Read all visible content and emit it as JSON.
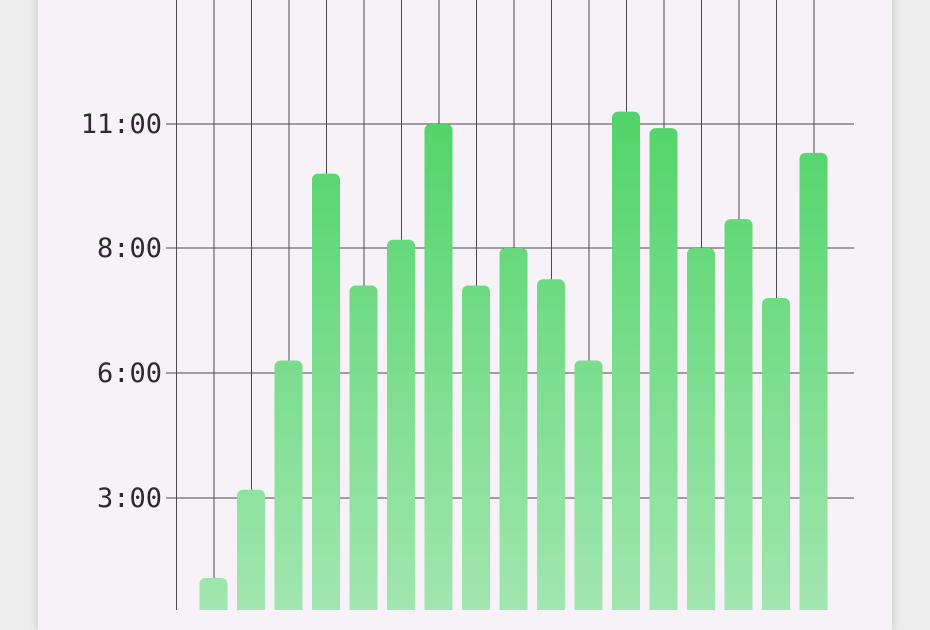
{
  "chart_data": {
    "type": "bar",
    "title": "",
    "xlabel": "",
    "ylabel": "",
    "y_unit": "h:mm",
    "yticks": [
      {
        "value": 3,
        "label": "3:00"
      },
      {
        "value": 6,
        "label": "6:00"
      },
      {
        "value": 8,
        "label": "8:00"
      },
      {
        "value": 11,
        "label": "11:00"
      }
    ],
    "values": [
      1.4,
      3.2,
      6.2,
      9.8,
      7.4,
      8.2,
      11.0,
      7.4,
      8.0,
      7.5,
      6.2,
      11.3,
      10.9,
      8.0,
      8.7,
      7.2,
      10.3
    ],
    "grid": true,
    "colors": {
      "bar_top": "#4fd467",
      "bar_bottom": "#a3e6b1",
      "grid": "#4a4a4a",
      "background": "#f6f2f8"
    }
  }
}
